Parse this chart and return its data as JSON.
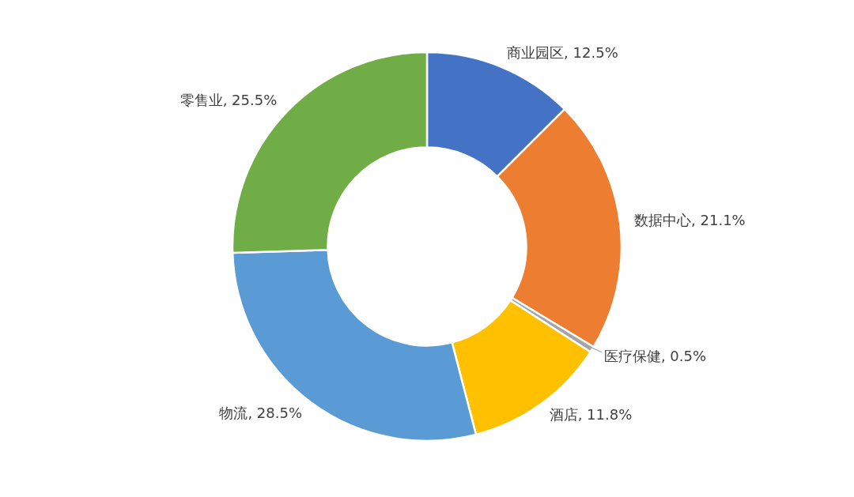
{
  "chart_data": {
    "type": "donut",
    "categories": [
      "商业园区",
      "数据中心",
      "医疗保健",
      "酒店",
      "物流",
      "零售业"
    ],
    "values": [
      12.5,
      21.1,
      0.5,
      11.8,
      28.5,
      25.5
    ],
    "value_labels": [
      "12.5%",
      "21.1%",
      "0.5%",
      "11.8%",
      "28.5%",
      "25.5%"
    ],
    "colors": [
      "#4472c4",
      "#ed7d31",
      "#a5a5a5",
      "#ffc000",
      "#5b9bd5",
      "#70ad47"
    ]
  }
}
